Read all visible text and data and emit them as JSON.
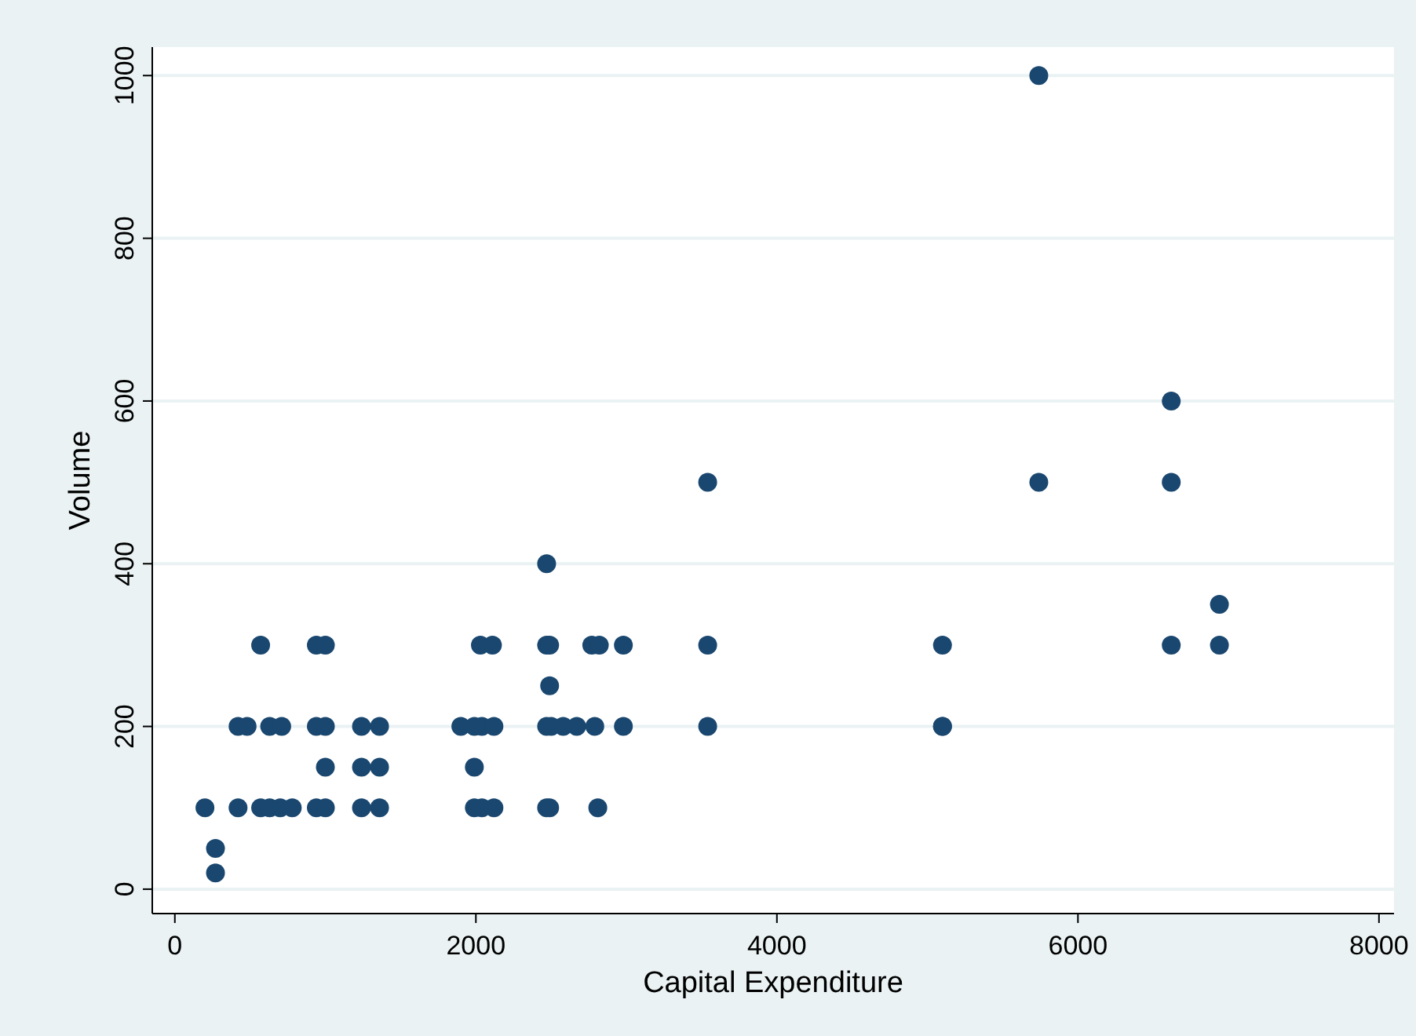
{
  "chart_data": {
    "type": "scatter",
    "xlabel": "Capital Expenditure",
    "ylabel": "Volume",
    "xlim": [
      -150,
      8100
    ],
    "ylim": [
      -30,
      1035
    ],
    "xticks": [
      0,
      2000,
      4000,
      6000,
      8000
    ],
    "yticks": [
      0,
      200,
      400,
      600,
      800,
      1000
    ],
    "grid": "y",
    "marker": "circle",
    "series": [
      {
        "color": "#1a476f",
        "x": [
          200,
          270,
          270,
          420,
          420,
          480,
          570,
          570,
          630,
          700,
          780,
          630,
          710,
          940,
          1000,
          940,
          1000,
          1000,
          940,
          1000,
          1240,
          1360,
          1240,
          1360,
          1240,
          1360,
          1900,
          1990,
          2040,
          2120,
          1990,
          1990,
          2040,
          2120,
          2030,
          2110,
          2470,
          2470,
          2490,
          2490,
          2470,
          2500,
          2470,
          2490,
          2580,
          2670,
          2790,
          2770,
          2820,
          2810,
          2980,
          2980,
          3540,
          3540,
          3540,
          5100,
          5100,
          5740,
          5740,
          6620,
          6620,
          6620,
          6940,
          6940,
          5100
        ],
        "values": [
          100,
          50,
          20,
          100,
          200,
          200,
          300,
          100,
          100,
          100,
          100,
          200,
          200,
          300,
          300,
          200,
          200,
          150,
          100,
          100,
          200,
          200,
          150,
          150,
          100,
          100,
          200,
          200,
          200,
          200,
          150,
          100,
          100,
          100,
          300,
          300,
          400,
          300,
          300,
          250,
          200,
          200,
          100,
          100,
          200,
          200,
          200,
          300,
          300,
          100,
          300,
          200,
          300,
          200,
          500,
          300,
          200,
          1000,
          500,
          600,
          500,
          300,
          350,
          300,
          200
        ]
      }
    ]
  }
}
